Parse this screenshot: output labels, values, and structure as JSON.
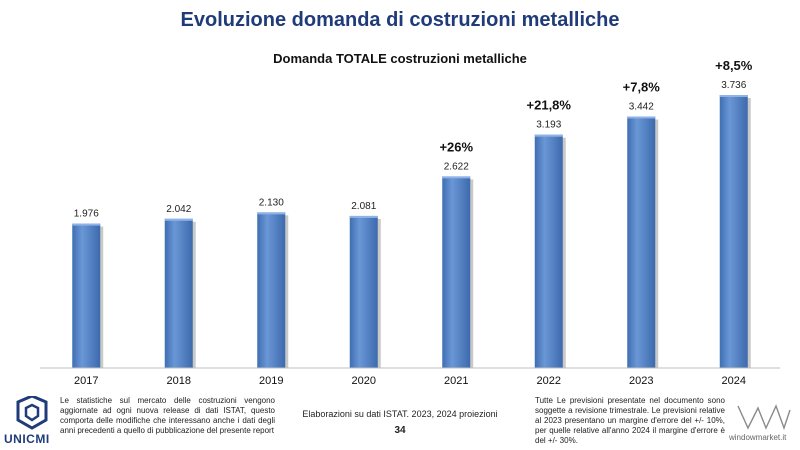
{
  "page": {
    "title": "Evoluzione domanda di costruzioni metalliche",
    "note_left": "Le statistiche sul mercato delle costruzioni vengono aggiornate ad ogni nuova release di dati ISTAT, questo comporta delle modifiche che interessano anche i dati degli anni precedenti a quello di pubblicazione del presente report",
    "source": "Elaborazioni su dati ISTAT. 2023, 2024 proiezioni",
    "page_number": "34",
    "note_right": "Tutte Le previsioni presentate nel documento sono soggette a revisione trimestrale. Le previsioni relative al 2023 presentano un margine d'errore del +/- 10%, per quelle relative all'anno 2024 il margine d'errore è del +/- 30%.",
    "logo_left_text": "UNICMI",
    "logo_right_text": "windowmarket.it"
  },
  "chart_data": {
    "type": "bar",
    "title": "Domanda TOTALE costruzioni metalliche",
    "xlabel": "",
    "ylabel": "",
    "categories": [
      "2017",
      "2018",
      "2019",
      "2020",
      "2021",
      "2022",
      "2023",
      "2024"
    ],
    "values": [
      1976,
      2042,
      2130,
      2081,
      2622,
      3193,
      3442,
      3736
    ],
    "value_labels": [
      "1.976",
      "2.042",
      "2.130",
      "2.081",
      "2.622",
      "3.193",
      "3.442",
      "3.736"
    ],
    "growth_labels": [
      "",
      "",
      "",
      "",
      "+26%",
      "+21,8%",
      "+7,8%",
      "+8,5%"
    ],
    "ylim": [
      0,
      3736
    ],
    "grid": false,
    "legend": "none",
    "bar_color": "#4f81c4"
  }
}
